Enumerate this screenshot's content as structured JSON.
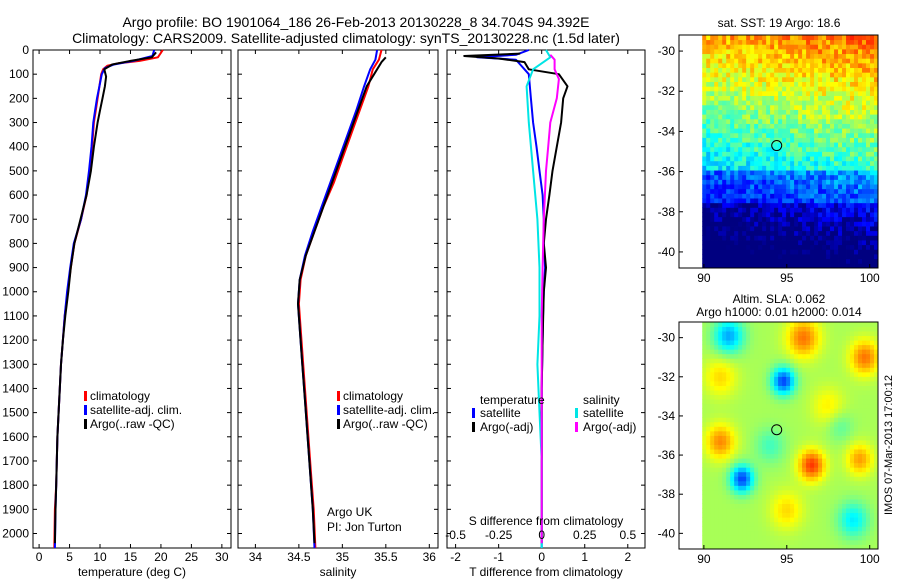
{
  "figure": {
    "title_line1": "Argo profile: BO 1901064_186 26-Feb-2013 20130228_8 34.704S 94.392E",
    "title_line2": "Climatology: CARS2009. Satellite-adjusted climatology: synTS_20130228.nc (1.5d later)",
    "side_text": "IMOS 07-Mar-2013 17:00:12"
  },
  "colors": {
    "climatology": "#ff0000",
    "satellite_adj": "#0000ff",
    "argo": "#000000",
    "satellite_s": "#00e5e5",
    "argo_adj_s": "#ff00ff"
  },
  "depth_axis": {
    "ticks": [
      0,
      100,
      200,
      300,
      400,
      500,
      600,
      700,
      800,
      900,
      1000,
      1100,
      1200,
      1300,
      1400,
      1500,
      1600,
      1700,
      1800,
      1900,
      2000
    ],
    "range": [
      0,
      2060
    ]
  },
  "chart_data": [
    {
      "type": "line",
      "xlabel": "temperature (deg C)",
      "xlim": [
        -1,
        31.5
      ],
      "xticks": [
        0,
        5,
        10,
        15,
        20,
        25,
        30
      ],
      "legend": [
        "climatology",
        "satellite-adj. clim.",
        "Argo(..raw -QC)"
      ],
      "series": [
        {
          "name": "climatology",
          "color": "#ff0000",
          "points": [
            [
              20.3,
              0
            ],
            [
              19.5,
              30
            ],
            [
              16.5,
              45
            ],
            [
              13,
              55
            ],
            [
              11.2,
              65
            ],
            [
              10.5,
              80
            ],
            [
              10.2,
              100
            ],
            [
              9.9,
              150
            ],
            [
              9.6,
              200
            ],
            [
              9.3,
              250
            ],
            [
              9.0,
              300
            ],
            [
              8.7,
              400
            ],
            [
              8.3,
              500
            ],
            [
              7.8,
              600
            ],
            [
              6.9,
              700
            ],
            [
              5.8,
              800
            ],
            [
              5.2,
              900
            ],
            [
              4.7,
              1000
            ],
            [
              4.2,
              1100
            ],
            [
              3.9,
              1200
            ],
            [
              3.6,
              1300
            ],
            [
              3.4,
              1400
            ],
            [
              3.2,
              1500
            ],
            [
              3.0,
              1600
            ],
            [
              2.9,
              1700
            ],
            [
              2.8,
              1800
            ],
            [
              2.6,
              1900
            ],
            [
              2.5,
              2060
            ]
          ]
        },
        {
          "name": "satellite-adj. clim.",
          "color": "#0000ff",
          "points": [
            [
              18.9,
              0
            ],
            [
              18.6,
              25
            ],
            [
              15.5,
              45
            ],
            [
              12.3,
              60
            ],
            [
              10.8,
              75
            ],
            [
              10.3,
              100
            ],
            [
              9.9,
              150
            ],
            [
              9.5,
              200
            ],
            [
              9.2,
              250
            ],
            [
              8.9,
              300
            ],
            [
              8.6,
              400
            ],
            [
              8.2,
              500
            ],
            [
              7.7,
              600
            ],
            [
              6.9,
              700
            ],
            [
              5.7,
              800
            ],
            [
              5.1,
              900
            ],
            [
              4.6,
              1000
            ],
            [
              4.2,
              1100
            ],
            [
              3.9,
              1200
            ],
            [
              3.6,
              1300
            ],
            [
              3.4,
              1400
            ],
            [
              3.2,
              1500
            ],
            [
              3.0,
              1600
            ],
            [
              2.9,
              1700
            ],
            [
              2.8,
              1800
            ],
            [
              2.7,
              1900
            ],
            [
              2.6,
              2060
            ]
          ]
        },
        {
          "name": "Argo(..raw -QC)",
          "color": "#000000",
          "points": [
            [
              19.2,
              10
            ],
            [
              18.5,
              30
            ],
            [
              15,
              45
            ],
            [
              12,
              60
            ],
            [
              10.7,
              80
            ],
            [
              11.0,
              110
            ],
            [
              10.8,
              150
            ],
            [
              10.4,
              200
            ],
            [
              10.0,
              250
            ],
            [
              9.6,
              300
            ],
            [
              9.0,
              400
            ],
            [
              8.5,
              500
            ],
            [
              7.8,
              600
            ],
            [
              6.8,
              700
            ],
            [
              5.8,
              800
            ],
            [
              5.2,
              900
            ],
            [
              4.8,
              1000
            ],
            [
              4.3,
              1100
            ],
            [
              3.9,
              1200
            ],
            [
              3.6,
              1300
            ],
            [
              3.4,
              1400
            ],
            [
              3.2,
              1500
            ],
            [
              3.0,
              1600
            ],
            [
              2.9,
              1700
            ],
            [
              2.8,
              1800
            ],
            [
              2.7,
              1900
            ],
            [
              2.6,
              2040
            ]
          ]
        }
      ]
    },
    {
      "type": "line",
      "xlabel": "salinity",
      "xlim": [
        33.8,
        36.1
      ],
      "xticks": [
        34,
        34.5,
        35,
        35.5,
        36
      ],
      "legend": [
        "climatology",
        "satellite-adj. clim.",
        "Argo(..raw -QC)"
      ],
      "annotation": [
        "Argo UK",
        "PI: Jon Turton"
      ],
      "series": [
        {
          "name": "climatology",
          "color": "#ff0000",
          "points": [
            [
              35.45,
              0
            ],
            [
              35.42,
              40
            ],
            [
              35.35,
              80
            ],
            [
              35.3,
              150
            ],
            [
              35.2,
              250
            ],
            [
              35.1,
              350
            ],
            [
              35.0,
              450
            ],
            [
              34.9,
              550
            ],
            [
              34.78,
              650
            ],
            [
              34.68,
              750
            ],
            [
              34.58,
              850
            ],
            [
              34.52,
              950
            ],
            [
              34.5,
              1050
            ],
            [
              34.52,
              1150
            ],
            [
              34.55,
              1300
            ],
            [
              34.58,
              1450
            ],
            [
              34.61,
              1600
            ],
            [
              34.64,
              1750
            ],
            [
              34.67,
              1900
            ],
            [
              34.69,
              2060
            ]
          ]
        },
        {
          "name": "satellite-adj. clim.",
          "color": "#0000ff",
          "points": [
            [
              35.4,
              0
            ],
            [
              35.38,
              40
            ],
            [
              35.32,
              80
            ],
            [
              35.25,
              150
            ],
            [
              35.16,
              250
            ],
            [
              35.06,
              350
            ],
            [
              34.96,
              450
            ],
            [
              34.86,
              550
            ],
            [
              34.76,
              650
            ],
            [
              34.66,
              750
            ],
            [
              34.57,
              850
            ],
            [
              34.51,
              950
            ],
            [
              34.49,
              1050
            ],
            [
              34.51,
              1150
            ],
            [
              34.54,
              1300
            ],
            [
              34.57,
              1450
            ],
            [
              34.6,
              1600
            ],
            [
              34.63,
              1750
            ],
            [
              34.66,
              1900
            ],
            [
              34.68,
              2060
            ]
          ]
        },
        {
          "name": "Argo(..raw -QC)",
          "color": "#000000",
          "points": [
            [
              35.5,
              30
            ],
            [
              35.45,
              50
            ],
            [
              35.4,
              80
            ],
            [
              35.28,
              150
            ],
            [
              35.18,
              250
            ],
            [
              35.08,
              350
            ],
            [
              34.98,
              450
            ],
            [
              34.88,
              550
            ],
            [
              34.78,
              650
            ],
            [
              34.68,
              750
            ],
            [
              34.58,
              850
            ],
            [
              34.51,
              950
            ],
            [
              34.49,
              1050
            ],
            [
              34.51,
              1150
            ],
            [
              34.54,
              1300
            ],
            [
              34.57,
              1450
            ],
            [
              34.6,
              1600
            ],
            [
              34.63,
              1750
            ],
            [
              34.66,
              1900
            ],
            [
              34.68,
              2040
            ]
          ]
        }
      ]
    },
    {
      "type": "line",
      "xlabel": "T difference from climatology",
      "xlabel_top": "S difference from climatology",
      "xlim": [
        -2.2,
        2.4
      ],
      "xticks": [
        -2,
        -1,
        0,
        1,
        2
      ],
      "xticks_s_values": [
        "-0.5",
        "-0.25",
        "0",
        "0.25",
        "0.5"
      ],
      "legend_temperature_title": "temperature",
      "legend_salinity_title": "salinity",
      "legend_temperature": [
        "satellite",
        "Argo(-adj)"
      ],
      "legend_salinity": [
        "satellite",
        "Argo(-adj)"
      ],
      "series": [
        {
          "name": "satellite",
          "color": "#0000ff",
          "points": [
            [
              -0.3,
              0
            ],
            [
              -0.6,
              20
            ],
            [
              -1.5,
              30
            ],
            [
              -0.6,
              40
            ],
            [
              -0.5,
              60
            ],
            [
              -0.4,
              80
            ],
            [
              -0.3,
              100
            ],
            [
              -0.25,
              200
            ],
            [
              -0.2,
              300
            ],
            [
              -0.12,
              400
            ],
            [
              -0.05,
              500
            ],
            [
              0.02,
              600
            ],
            [
              0.05,
              700
            ],
            [
              0.05,
              800
            ],
            [
              0.08,
              900
            ],
            [
              0.05,
              1000
            ],
            [
              0.03,
              1100
            ],
            [
              0.02,
              1200
            ],
            [
              0.0,
              1400
            ],
            [
              0.0,
              1600
            ],
            [
              0.0,
              1800
            ],
            [
              0.0,
              2060
            ]
          ]
        },
        {
          "name": "Argo(-adj)",
          "color": "#000000",
          "points": [
            [
              -0.5,
              15
            ],
            [
              -1.8,
              25
            ],
            [
              -1.0,
              35
            ],
            [
              -0.4,
              50
            ],
            [
              -0.3,
              80
            ],
            [
              0.4,
              100
            ],
            [
              0.6,
              150
            ],
            [
              0.5,
              200
            ],
            [
              0.45,
              300
            ],
            [
              0.35,
              400
            ],
            [
              0.25,
              500
            ],
            [
              0.18,
              600
            ],
            [
              0.1,
              700
            ],
            [
              0.05,
              800
            ],
            [
              0.1,
              900
            ],
            [
              0.05,
              1000
            ],
            [
              0.02,
              1200
            ],
            [
              0.0,
              1400
            ],
            [
              0.0,
              1600
            ],
            [
              0.0,
              1800
            ],
            [
              0.0,
              2040
            ]
          ]
        },
        {
          "name": "satellite",
          "color": "#00e5e5",
          "points": [
            [
              0.1,
              0
            ],
            [
              0.2,
              30
            ],
            [
              -0.2,
              80
            ],
            [
              -0.35,
              150
            ],
            [
              -0.3,
              300
            ],
            [
              -0.2,
              500
            ],
            [
              -0.1,
              700
            ],
            [
              -0.05,
              900
            ],
            [
              -0.05,
              1100
            ],
            [
              -0.1,
              1300
            ],
            [
              -0.05,
              1500
            ],
            [
              0.0,
              1700
            ],
            [
              0.0,
              1900
            ],
            [
              0.0,
              2060
            ]
          ]
        },
        {
          "name": "Argo(-adj)",
          "color": "#ff00ff",
          "points": [
            [
              0.2,
              20
            ],
            [
              0.3,
              40
            ],
            [
              0.3,
              80
            ],
            [
              0.4,
              120
            ],
            [
              0.35,
              200
            ],
            [
              0.2,
              300
            ],
            [
              0.15,
              400
            ],
            [
              0.1,
              500
            ],
            [
              0.05,
              700
            ],
            [
              0.02,
              900
            ],
            [
              0.0,
              1100
            ],
            [
              0.0,
              1300
            ],
            [
              0.0,
              1500
            ],
            [
              0.0,
              1700
            ],
            [
              0.0,
              1900
            ],
            [
              0.0,
              2040
            ]
          ]
        }
      ]
    },
    {
      "type": "heatmap",
      "title": "sat. SST: 19 Argo: 18.6",
      "xticks": [
        90,
        95,
        100
      ],
      "yticks": [
        -30,
        -32,
        -34,
        -36,
        -38,
        -40
      ],
      "xlim": [
        88.5,
        100.5
      ],
      "ylim": [
        -40.8,
        -29.2
      ],
      "marker": [
        94.392,
        -34.704
      ]
    },
    {
      "type": "heatmap",
      "title": "Altim. SLA: 0.062",
      "subtitle": "Argo h1000: 0.01 h2000: 0.014",
      "xticks": [
        90,
        95,
        100
      ],
      "yticks": [
        -30,
        -32,
        -34,
        -36,
        -38,
        -40
      ],
      "xlim": [
        88.5,
        100.5
      ],
      "ylim": [
        -40.8,
        -29.2
      ],
      "marker": [
        94.392,
        -34.704
      ]
    }
  ]
}
